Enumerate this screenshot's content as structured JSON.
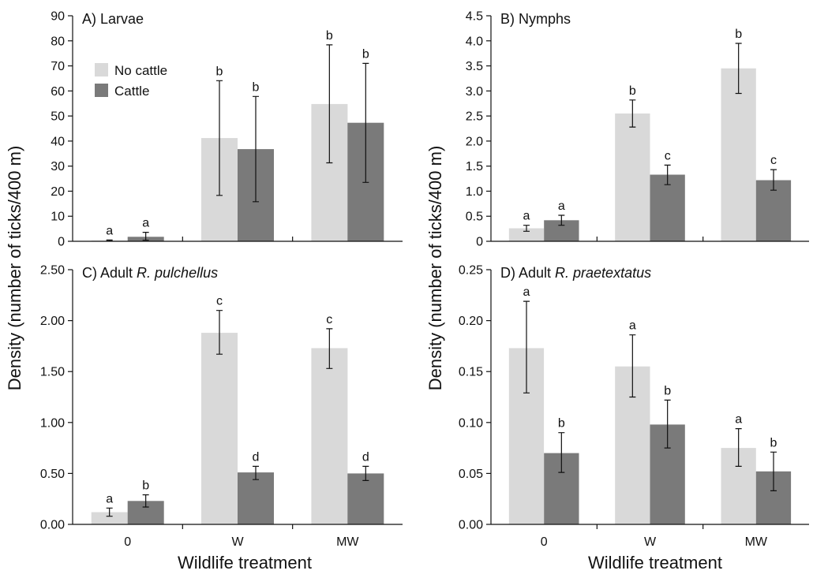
{
  "colors": {
    "no_cattle": "#d9d9d9",
    "cattle": "#7a7a7a",
    "axis": "#111111"
  },
  "shared": {
    "ylabel": "Density (number of ticks/400 m)",
    "xlabel": "Wildlife treatment",
    "legend": [
      "No cattle",
      "Cattle"
    ],
    "legend_placement": "top-left of panel A"
  },
  "chart_data": [
    {
      "type": "bar",
      "panel": "A",
      "title_prefix": "A) ",
      "title_main": "Larvae",
      "title_italic": "",
      "title_suffix": "",
      "categories": [
        "0",
        "W",
        "MW"
      ],
      "ylim": [
        0,
        90
      ],
      "yticks": [
        "0",
        "10",
        "20",
        "30",
        "40",
        "50",
        "60",
        "70",
        "80",
        "90"
      ],
      "show_xticklabels": false,
      "series": [
        {
          "name": "No cattle",
          "values": [
            0.3,
            41.2,
            54.8
          ],
          "err_low": [
            0.1,
            18.3,
            31.3
          ],
          "err_high": [
            0.5,
            64.1,
            78.4
          ],
          "letters": [
            "a",
            "b",
            "b"
          ]
        },
        {
          "name": "Cattle",
          "values": [
            1.8,
            36.8,
            47.3
          ],
          "err_low": [
            0.4,
            15.8,
            23.5
          ],
          "err_high": [
            3.6,
            57.8,
            71.0
          ],
          "letters": [
            "a",
            "b",
            "b"
          ]
        }
      ]
    },
    {
      "type": "bar",
      "panel": "B",
      "title_prefix": "B) ",
      "title_main": "Nymphs",
      "title_italic": "",
      "title_suffix": "",
      "categories": [
        "0",
        "W",
        "MW"
      ],
      "ylim": [
        0,
        4.5
      ],
      "yticks": [
        "0",
        "0.5",
        "1.0",
        "1.5",
        "2.0",
        "2.5",
        "3.0",
        "3.5",
        "4.0",
        "4.5"
      ],
      "show_xticklabels": false,
      "series": [
        {
          "name": "No cattle",
          "values": [
            0.26,
            2.55,
            3.45
          ],
          "err_low": [
            0.2,
            2.28,
            2.95
          ],
          "err_high": [
            0.32,
            2.82,
            3.95
          ],
          "letters": [
            "a",
            "b",
            "b"
          ]
        },
        {
          "name": "Cattle",
          "values": [
            0.42,
            1.33,
            1.22
          ],
          "err_low": [
            0.32,
            1.13,
            1.02
          ],
          "err_high": [
            0.52,
            1.52,
            1.43
          ],
          "letters": [
            "a",
            "c",
            "c"
          ]
        }
      ]
    },
    {
      "type": "bar",
      "panel": "C",
      "title_prefix": "C) Adult ",
      "title_main": "",
      "title_italic": "R. pulchellus",
      "title_suffix": "",
      "categories": [
        "0",
        "W",
        "MW"
      ],
      "ylim": [
        0,
        2.5
      ],
      "yticks": [
        "0.00",
        "0.50",
        "1.00",
        "1.50",
        "2.00",
        "2.50"
      ],
      "show_xticklabels": true,
      "series": [
        {
          "name": "No cattle",
          "values": [
            0.12,
            1.88,
            1.73
          ],
          "err_low": [
            0.08,
            1.67,
            1.53
          ],
          "err_high": [
            0.16,
            2.1,
            1.92
          ],
          "letters": [
            "a",
            "c",
            "c"
          ]
        },
        {
          "name": "Cattle",
          "values": [
            0.23,
            0.51,
            0.5
          ],
          "err_low": [
            0.17,
            0.44,
            0.43
          ],
          "err_high": [
            0.29,
            0.57,
            0.57
          ],
          "letters": [
            "b",
            "d",
            "d"
          ]
        }
      ]
    },
    {
      "type": "bar",
      "panel": "D",
      "title_prefix": "D) Adult ",
      "title_main": "",
      "title_italic": "R. praetextatus",
      "title_suffix": "",
      "categories": [
        "0",
        "W",
        "MW"
      ],
      "ylim": [
        0,
        0.25
      ],
      "yticks": [
        "0.00",
        "0.05",
        "0.10",
        "0.15",
        "0.20",
        "0.25"
      ],
      "show_xticklabels": true,
      "series": [
        {
          "name": "No cattle",
          "values": [
            0.173,
            0.155,
            0.075
          ],
          "err_low": [
            0.129,
            0.125,
            0.057
          ],
          "err_high": [
            0.219,
            0.186,
            0.094
          ],
          "letters": [
            "a",
            "a",
            "a"
          ]
        },
        {
          "name": "Cattle",
          "values": [
            0.07,
            0.098,
            0.052
          ],
          "err_low": [
            0.051,
            0.075,
            0.033
          ],
          "err_high": [
            0.09,
            0.122,
            0.071
          ],
          "letters": [
            "b",
            "b",
            "b"
          ]
        }
      ]
    }
  ]
}
